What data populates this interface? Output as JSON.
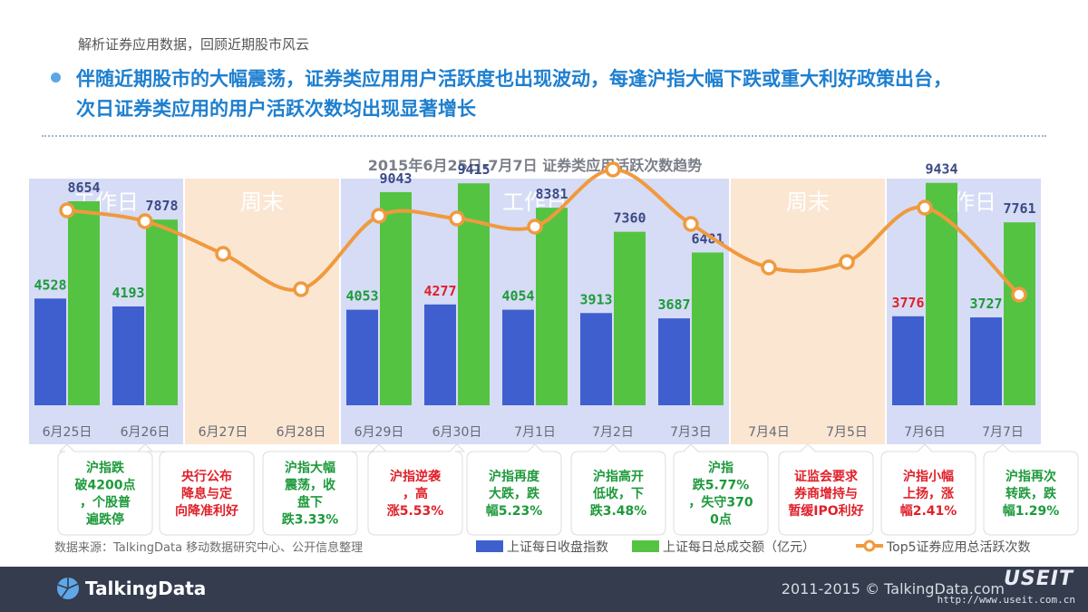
{
  "header": {
    "subtitle": "解析证券应用数据，回顾近期股市风云",
    "headline_line1": "伴随近期股市的大幅震荡，证券类应用用户活跃度也出现波动，每逢沪指大幅下跌或重大利好政策出台，",
    "headline_line2": "次日证券类应用的用户活跃次数均出现显著增长"
  },
  "chart_data": {
    "type": "bar",
    "title": "2015年6月25日-7月7日 证券类应用活跃次数趋势",
    "categories": [
      "6月25日",
      "6月26日",
      "6月27日",
      "6月28日",
      "6月29日",
      "6月30日",
      "7月1日",
      "7月2日",
      "7月3日",
      "7月4日",
      "7月5日",
      "7月6日",
      "7月7日"
    ],
    "ylim": [
      0,
      10000
    ],
    "series": [
      {
        "name": "上证每日收盘指数",
        "kind": "bar",
        "color": "#3f5fcf",
        "values": [
          4528,
          4193,
          null,
          null,
          4053,
          4277,
          4054,
          3913,
          3687,
          null,
          null,
          3776,
          3727
        ],
        "label_colors": [
          "#1d9a3b",
          "#1d9a3b",
          null,
          null,
          "#1d9a3b",
          "#e0202a",
          "#1d9a3b",
          "#1d9a3b",
          "#1d9a3b",
          null,
          null,
          "#e0202a",
          "#1d9a3b"
        ]
      },
      {
        "name": "上证每日总成交额（亿元）",
        "kind": "bar",
        "color": "#55c342",
        "values": [
          8654,
          7878,
          null,
          null,
          9043,
          9415,
          8381,
          7360,
          6481,
          null,
          null,
          9434,
          7761
        ],
        "label_color": "#3b4a86"
      },
      {
        "name": "Top5证券应用总活跃次数",
        "kind": "line",
        "color": "#f09a3e",
        "values": [
          0.72,
          0.68,
          0.56,
          0.43,
          0.7,
          0.69,
          0.66,
          0.87,
          0.67,
          0.51,
          0.53,
          0.73,
          0.41
        ],
        "unit": "relative (no axis shown)"
      }
    ],
    "periods": [
      {
        "label": "工作日",
        "start": 0,
        "end": 1,
        "kind": "weekday"
      },
      {
        "label": "周末",
        "start": 2,
        "end": 3,
        "kind": "weekend"
      },
      {
        "label": "工作日",
        "start": 4,
        "end": 8,
        "kind": "weekday"
      },
      {
        "label": "周末",
        "start": 9,
        "end": 10,
        "kind": "weekend"
      },
      {
        "label": "工作日",
        "start": 11,
        "end": 12,
        "kind": "weekday"
      }
    ],
    "annotations": [
      {
        "lines": [
          "沪指跌",
          "破4200点",
          "，个股普",
          "遍跌停"
        ],
        "color": "#1d9a3b"
      },
      {
        "lines": [
          "央行公布",
          "降息与定",
          "向降准利好"
        ],
        "color": "#e0202a"
      },
      {
        "lines": [
          "沪指大幅",
          "震荡，收",
          "盘下",
          "跌3.33%"
        ],
        "color": "#1d9a3b"
      },
      {
        "lines": [
          "沪指逆袭",
          "，高",
          "涨5.53%"
        ],
        "color": "#e0202a"
      },
      {
        "lines": [
          "沪指再度",
          "大跌，跌",
          "幅5.23%"
        ],
        "color": "#1d9a3b"
      },
      {
        "lines": [
          "沪指高开",
          "低收，下",
          "跌3.48%"
        ],
        "color": "#1d9a3b"
      },
      {
        "lines": [
          "沪指",
          "跌5.77%",
          "，失守370",
          "0点"
        ],
        "color": "#1d9a3b"
      },
      {
        "lines": [
          "证监会要求",
          "券商增持与",
          "暂缓IPO利好"
        ],
        "color": "#e0202a"
      },
      {
        "lines": [
          "沪指小幅",
          "上扬，涨",
          "幅2.41%"
        ],
        "color": "#e0202a"
      },
      {
        "lines": [
          "沪指再次",
          "转跌，跌",
          "幅1.29%"
        ],
        "color": "#1d9a3b"
      }
    ],
    "source": "数据来源：TalkingData 移动数据研究中心、公开信息整理",
    "legend_placement": "bottom-right",
    "grid": false
  },
  "colors": {
    "weekday_band": "#d6dcf5",
    "weekend_band": "#fbe6d2",
    "headline": "#1e7fcf",
    "footer_bg": "#343c4e"
  },
  "footer": {
    "logo_text": "TalkingData",
    "logo_icon": "talkingdata-logo-icon",
    "copyright": "2011-2015 © TalkingData.com",
    "watermark_brand": "USEIT",
    "watermark_url": "http://www.useit.com.cn"
  }
}
